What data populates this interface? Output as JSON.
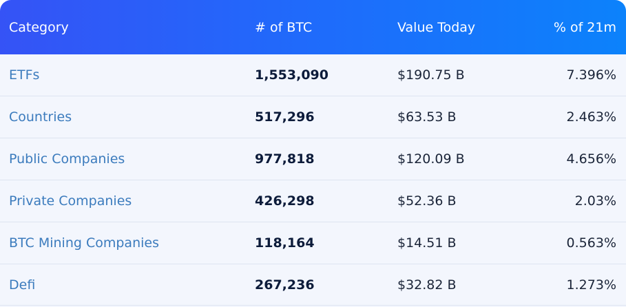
{
  "table": {
    "headers": {
      "category": "Category",
      "btc": "# of BTC",
      "value": "Value Today",
      "pct": "% of 21m"
    },
    "rows": [
      {
        "category": "ETFs",
        "btc": "1,553,090",
        "value": "$190.75 B",
        "pct": "7.396%"
      },
      {
        "category": "Countries",
        "btc": "517,296",
        "value": "$63.53 B",
        "pct": "2.463%"
      },
      {
        "category": "Public Companies",
        "btc": "977,818",
        "value": "$120.09 B",
        "pct": "4.656%"
      },
      {
        "category": "Private Companies",
        "btc": "426,298",
        "value": "$52.36 B",
        "pct": "2.03%"
      },
      {
        "category": "BTC Mining Companies",
        "btc": "118,164",
        "value": "$14.51 B",
        "pct": "0.563%"
      },
      {
        "category": "Defi",
        "btc": "267,236",
        "value": "$32.82 B",
        "pct": "1.273%"
      }
    ]
  },
  "colors": {
    "header_start": "#3553f6",
    "header_end": "#0c82fb",
    "category_link": "#3b7bbd",
    "row_bg": "#f3f6fd"
  }
}
